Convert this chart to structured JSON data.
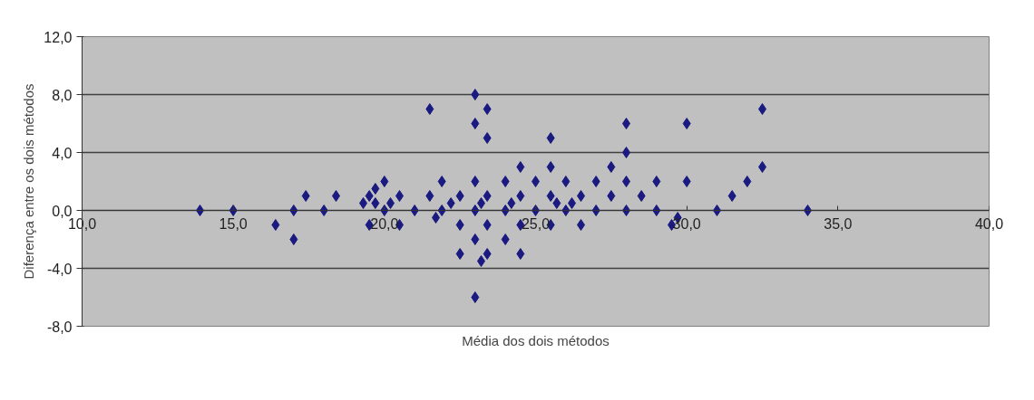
{
  "chart_data": {
    "type": "scatter",
    "xlabel": "Média dos dois métodos",
    "ylabel": "Diferença entre os dois métodos",
    "marker": "diamond",
    "grid": "y",
    "xlim": [
      10,
      40
    ],
    "ylim": [
      -8,
      12
    ],
    "xticks": [
      {
        "value": 10,
        "label": "10,0"
      },
      {
        "value": 15,
        "label": "15,0"
      },
      {
        "value": 20,
        "label": "20,0"
      },
      {
        "value": 25,
        "label": "25,0"
      },
      {
        "value": 30,
        "label": "30,0"
      },
      {
        "value": 35,
        "label": "35,0"
      },
      {
        "value": 40,
        "label": "40,0"
      }
    ],
    "yticks": [
      {
        "value": -8,
        "label": "-8,0"
      },
      {
        "value": -4,
        "label": "-4,0"
      },
      {
        "value": 0,
        "label": "0,0"
      },
      {
        "value": 4,
        "label": "4,0"
      },
      {
        "value": 8,
        "label": "8,0"
      },
      {
        "value": 12,
        "label": "12,0"
      }
    ],
    "series": [
      {
        "color": "#1a1a80",
        "x": [
          13.9,
          15.0,
          16.4,
          17.0,
          17.0,
          17.4,
          18.0,
          18.4,
          19.3,
          19.5,
          19.5,
          19.7,
          19.7,
          20.0,
          20.0,
          20.2,
          20.5,
          20.5,
          21.0,
          21.5,
          21.5,
          21.7,
          21.9,
          21.9,
          22.2,
          22.5,
          22.5,
          22.5,
          23.0,
          23.0,
          23.0,
          23.0,
          23.0,
          23.0,
          23.2,
          23.2,
          23.4,
          23.4,
          23.4,
          23.4,
          23.4,
          24.0,
          24.0,
          24.0,
          24.2,
          24.5,
          24.5,
          24.5,
          24.5,
          25.0,
          25.0,
          25.5,
          25.5,
          25.5,
          25.5,
          25.7,
          26.0,
          26.0,
          26.2,
          26.5,
          26.5,
          27.0,
          27.0,
          27.5,
          27.5,
          28.0,
          28.0,
          28.0,
          28.0,
          28.5,
          29.0,
          29.0,
          29.5,
          29.7,
          30.0,
          30.0,
          31.0,
          31.5,
          32.0,
          32.5,
          32.5,
          34.0
        ],
        "values": [
          0,
          0,
          -1,
          0,
          -2,
          1,
          0,
          1,
          0.5,
          1,
          -1,
          1.5,
          0.5,
          2,
          0,
          0.5,
          1,
          -1,
          0,
          7,
          1,
          -0.5,
          0,
          2,
          0.5,
          1,
          -1,
          -3,
          8,
          6,
          2,
          0,
          -2,
          -6,
          0.5,
          -3.5,
          7,
          5,
          1,
          -1,
          -3,
          2,
          0,
          -2,
          0.5,
          3,
          1,
          -1,
          -3,
          2,
          0,
          5,
          3,
          1,
          -1,
          0.5,
          2,
          0,
          0.5,
          1,
          -1,
          2,
          0,
          3,
          1,
          6,
          4,
          2,
          0,
          1,
          2,
          0,
          -1,
          -0.5,
          6,
          2,
          0,
          1,
          2,
          3,
          7,
          0
        ]
      }
    ]
  }
}
